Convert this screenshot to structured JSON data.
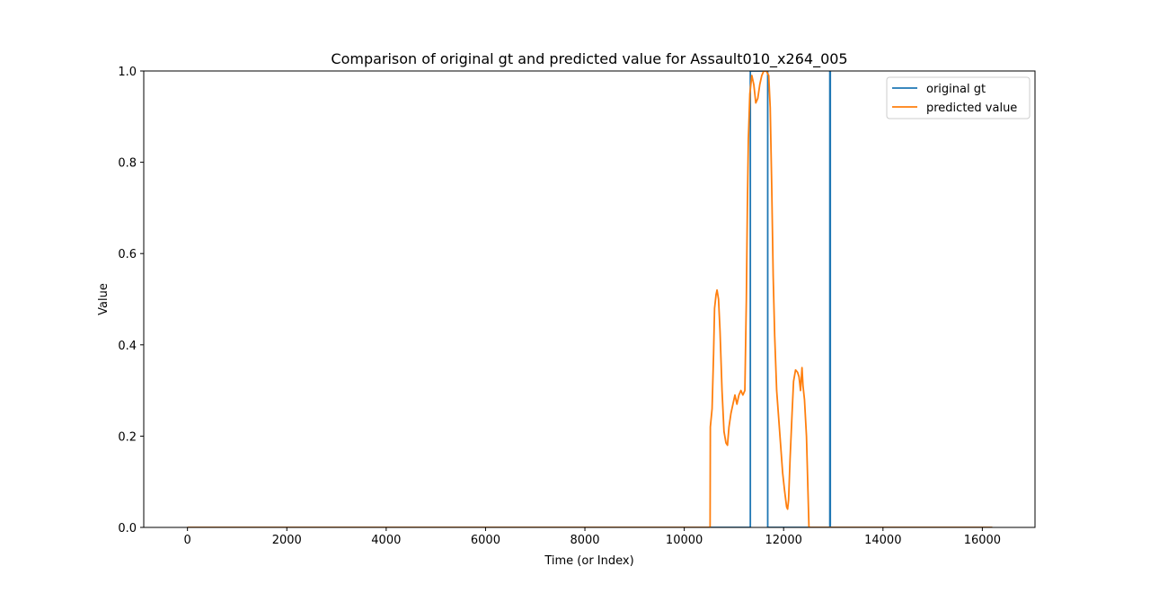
{
  "chart_data": {
    "type": "line",
    "title": "Comparison of original gt and predicted value for Assault010_x264_005",
    "xlabel": "Time (or Index)",
    "ylabel": "Value",
    "xlim": [
      -880,
      17060
    ],
    "ylim": [
      0.0,
      1.0
    ],
    "xticks": [
      0,
      2000,
      4000,
      6000,
      8000,
      10000,
      12000,
      14000,
      16000
    ],
    "xtick_labels": [
      "0",
      "2000",
      "4000",
      "6000",
      "8000",
      "10000",
      "12000",
      "14000",
      "16000"
    ],
    "yticks": [
      0.0,
      0.2,
      0.4,
      0.6,
      0.8,
      1.0
    ],
    "ytick_labels": [
      "0.0",
      "0.2",
      "0.4",
      "0.6",
      "0.8",
      "1.0"
    ],
    "grid": false,
    "legend_position": "top-right",
    "series": [
      {
        "name": "original gt",
        "color": "#1f77b4",
        "points": [
          [
            0,
            0
          ],
          [
            11330,
            0
          ],
          [
            11330,
            1
          ],
          [
            11680,
            1
          ],
          [
            11680,
            0
          ],
          [
            12930,
            0
          ],
          [
            12930,
            1
          ],
          [
            12940,
            1
          ],
          [
            12940,
            0
          ],
          [
            16200,
            0
          ]
        ]
      },
      {
        "name": "predicted value",
        "color": "#ff7f0e",
        "points": [
          [
            0,
            0
          ],
          [
            10520,
            0
          ],
          [
            10525,
            0.22
          ],
          [
            10560,
            0.26
          ],
          [
            10590,
            0.38
          ],
          [
            10610,
            0.48
          ],
          [
            10640,
            0.51
          ],
          [
            10660,
            0.52
          ],
          [
            10690,
            0.5
          ],
          [
            10720,
            0.43
          ],
          [
            10760,
            0.3
          ],
          [
            10800,
            0.21
          ],
          [
            10840,
            0.185
          ],
          [
            10870,
            0.18
          ],
          [
            10900,
            0.22
          ],
          [
            10940,
            0.25
          ],
          [
            10980,
            0.27
          ],
          [
            11020,
            0.29
          ],
          [
            11060,
            0.27
          ],
          [
            11100,
            0.29
          ],
          [
            11140,
            0.3
          ],
          [
            11180,
            0.29
          ],
          [
            11220,
            0.3
          ],
          [
            11250,
            0.5
          ],
          [
            11270,
            0.7
          ],
          [
            11290,
            0.85
          ],
          [
            11320,
            0.95
          ],
          [
            11360,
            0.99
          ],
          [
            11400,
            0.97
          ],
          [
            11440,
            0.93
          ],
          [
            11480,
            0.94
          ],
          [
            11520,
            0.97
          ],
          [
            11560,
            0.99
          ],
          [
            11600,
            1.0
          ],
          [
            11650,
            1.0
          ],
          [
            11700,
            0.99
          ],
          [
            11730,
            0.92
          ],
          [
            11760,
            0.75
          ],
          [
            11790,
            0.55
          ],
          [
            11820,
            0.42
          ],
          [
            11860,
            0.3
          ],
          [
            11900,
            0.24
          ],
          [
            11940,
            0.18
          ],
          [
            11980,
            0.12
          ],
          [
            12020,
            0.08
          ],
          [
            12060,
            0.045
          ],
          [
            12080,
            0.04
          ],
          [
            12100,
            0.06
          ],
          [
            12130,
            0.15
          ],
          [
            12170,
            0.25
          ],
          [
            12200,
            0.32
          ],
          [
            12240,
            0.345
          ],
          [
            12280,
            0.34
          ],
          [
            12310,
            0.33
          ],
          [
            12340,
            0.3
          ],
          [
            12370,
            0.35
          ],
          [
            12390,
            0.31
          ],
          [
            12420,
            0.28
          ],
          [
            12460,
            0.2
          ],
          [
            12490,
            0.08
          ],
          [
            12510,
            0.0
          ],
          [
            16200,
            0
          ]
        ]
      }
    ]
  }
}
